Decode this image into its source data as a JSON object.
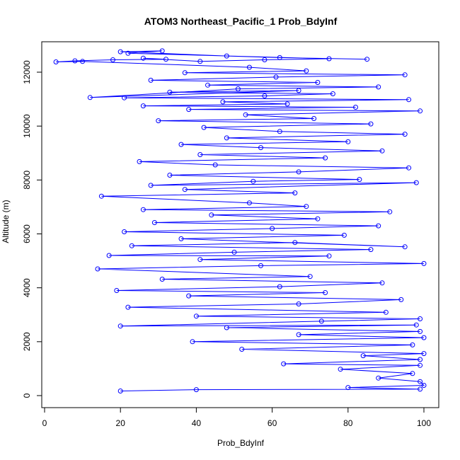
{
  "chart_data": {
    "type": "line",
    "title": "ATOM3 Northeast_Pacific_1 Prob_BdyInf",
    "xlabel": "Prob_BdyInf",
    "ylabel": "Altitude (m)",
    "xlim": [
      0,
      100
    ],
    "ylim": [
      0,
      12800
    ],
    "xticks": [
      0,
      20,
      40,
      60,
      80,
      100
    ],
    "yticks": [
      0,
      2000,
      4000,
      6000,
      8000,
      10000,
      12000
    ],
    "series_color": "#0000ff",
    "marker": "open-circle",
    "grid": false,
    "legend": "none",
    "series": [
      {
        "values": [
          [
            20,
            170
          ],
          [
            40,
            220
          ],
          [
            99,
            240
          ],
          [
            80,
            300
          ],
          [
            100,
            380
          ],
          [
            99,
            520
          ],
          [
            88,
            650
          ],
          [
            97,
            820
          ],
          [
            78,
            980
          ],
          [
            99,
            1120
          ],
          [
            63,
            1180
          ],
          [
            99,
            1340
          ],
          [
            84,
            1480
          ],
          [
            100,
            1560
          ],
          [
            52,
            1720
          ],
          [
            97,
            1880
          ],
          [
            39,
            2000
          ],
          [
            100,
            2150
          ],
          [
            67,
            2260
          ],
          [
            99,
            2380
          ],
          [
            48,
            2520
          ],
          [
            98,
            2620
          ],
          [
            20,
            2580
          ],
          [
            73,
            2760
          ],
          [
            99,
            2850
          ],
          [
            40,
            2950
          ],
          [
            90,
            3090
          ],
          [
            22,
            3280
          ],
          [
            67,
            3400
          ],
          [
            94,
            3560
          ],
          [
            38,
            3700
          ],
          [
            74,
            3820
          ],
          [
            19,
            3900
          ],
          [
            62,
            4040
          ],
          [
            89,
            4180
          ],
          [
            31,
            4320
          ],
          [
            70,
            4420
          ],
          [
            14,
            4700
          ],
          [
            57,
            4820
          ],
          [
            100,
            4900
          ],
          [
            41,
            5050
          ],
          [
            75,
            5180
          ],
          [
            17,
            5200
          ],
          [
            50,
            5320
          ],
          [
            86,
            5420
          ],
          [
            23,
            5560
          ],
          [
            66,
            5680
          ],
          [
            95,
            5520
          ],
          [
            36,
            5820
          ],
          [
            79,
            5950
          ],
          [
            21,
            6080
          ],
          [
            60,
            6200
          ],
          [
            88,
            6300
          ],
          [
            29,
            6420
          ],
          [
            72,
            6560
          ],
          [
            44,
            6700
          ],
          [
            91,
            6820
          ],
          [
            26,
            6900
          ],
          [
            69,
            7020
          ],
          [
            54,
            7150
          ],
          [
            15,
            7400
          ],
          [
            66,
            7520
          ],
          [
            37,
            7650
          ],
          [
            98,
            7900
          ],
          [
            28,
            7800
          ],
          [
            55,
            7950
          ],
          [
            83,
            8020
          ],
          [
            33,
            8180
          ],
          [
            67,
            8300
          ],
          [
            96,
            8450
          ],
          [
            45,
            8560
          ],
          [
            25,
            8680
          ],
          [
            74,
            8820
          ],
          [
            41,
            8940
          ],
          [
            89,
            9080
          ],
          [
            57,
            9200
          ],
          [
            36,
            9320
          ],
          [
            80,
            9420
          ],
          [
            48,
            9560
          ],
          [
            95,
            9700
          ],
          [
            62,
            9800
          ],
          [
            42,
            9950
          ],
          [
            86,
            10080
          ],
          [
            30,
            10200
          ],
          [
            71,
            10280
          ],
          [
            53,
            10420
          ],
          [
            99,
            10560
          ],
          [
            38,
            10620
          ],
          [
            82,
            10700
          ],
          [
            26,
            10750
          ],
          [
            64,
            10820
          ],
          [
            47,
            10900
          ],
          [
            96,
            10980
          ],
          [
            21,
            11050
          ],
          [
            58,
            11120
          ],
          [
            76,
            11200
          ],
          [
            33,
            11260
          ],
          [
            67,
            11320
          ],
          [
            12,
            11060
          ],
          [
            51,
            11380
          ],
          [
            88,
            11450
          ],
          [
            43,
            11520
          ],
          [
            72,
            11620
          ],
          [
            28,
            11700
          ],
          [
            61,
            11820
          ],
          [
            95,
            11900
          ],
          [
            37,
            11980
          ],
          [
            69,
            12050
          ],
          [
            54,
            12180
          ],
          [
            10,
            12400
          ],
          [
            3,
            12380
          ],
          [
            8,
            12420
          ],
          [
            18,
            12460
          ],
          [
            32,
            12480
          ],
          [
            26,
            12520
          ],
          [
            41,
            12400
          ],
          [
            58,
            12460
          ],
          [
            75,
            12500
          ],
          [
            22,
            12700
          ],
          [
            31,
            12790
          ],
          [
            20,
            12760
          ],
          [
            48,
            12600
          ],
          [
            62,
            12540
          ],
          [
            85,
            12480
          ]
        ]
      }
    ]
  }
}
